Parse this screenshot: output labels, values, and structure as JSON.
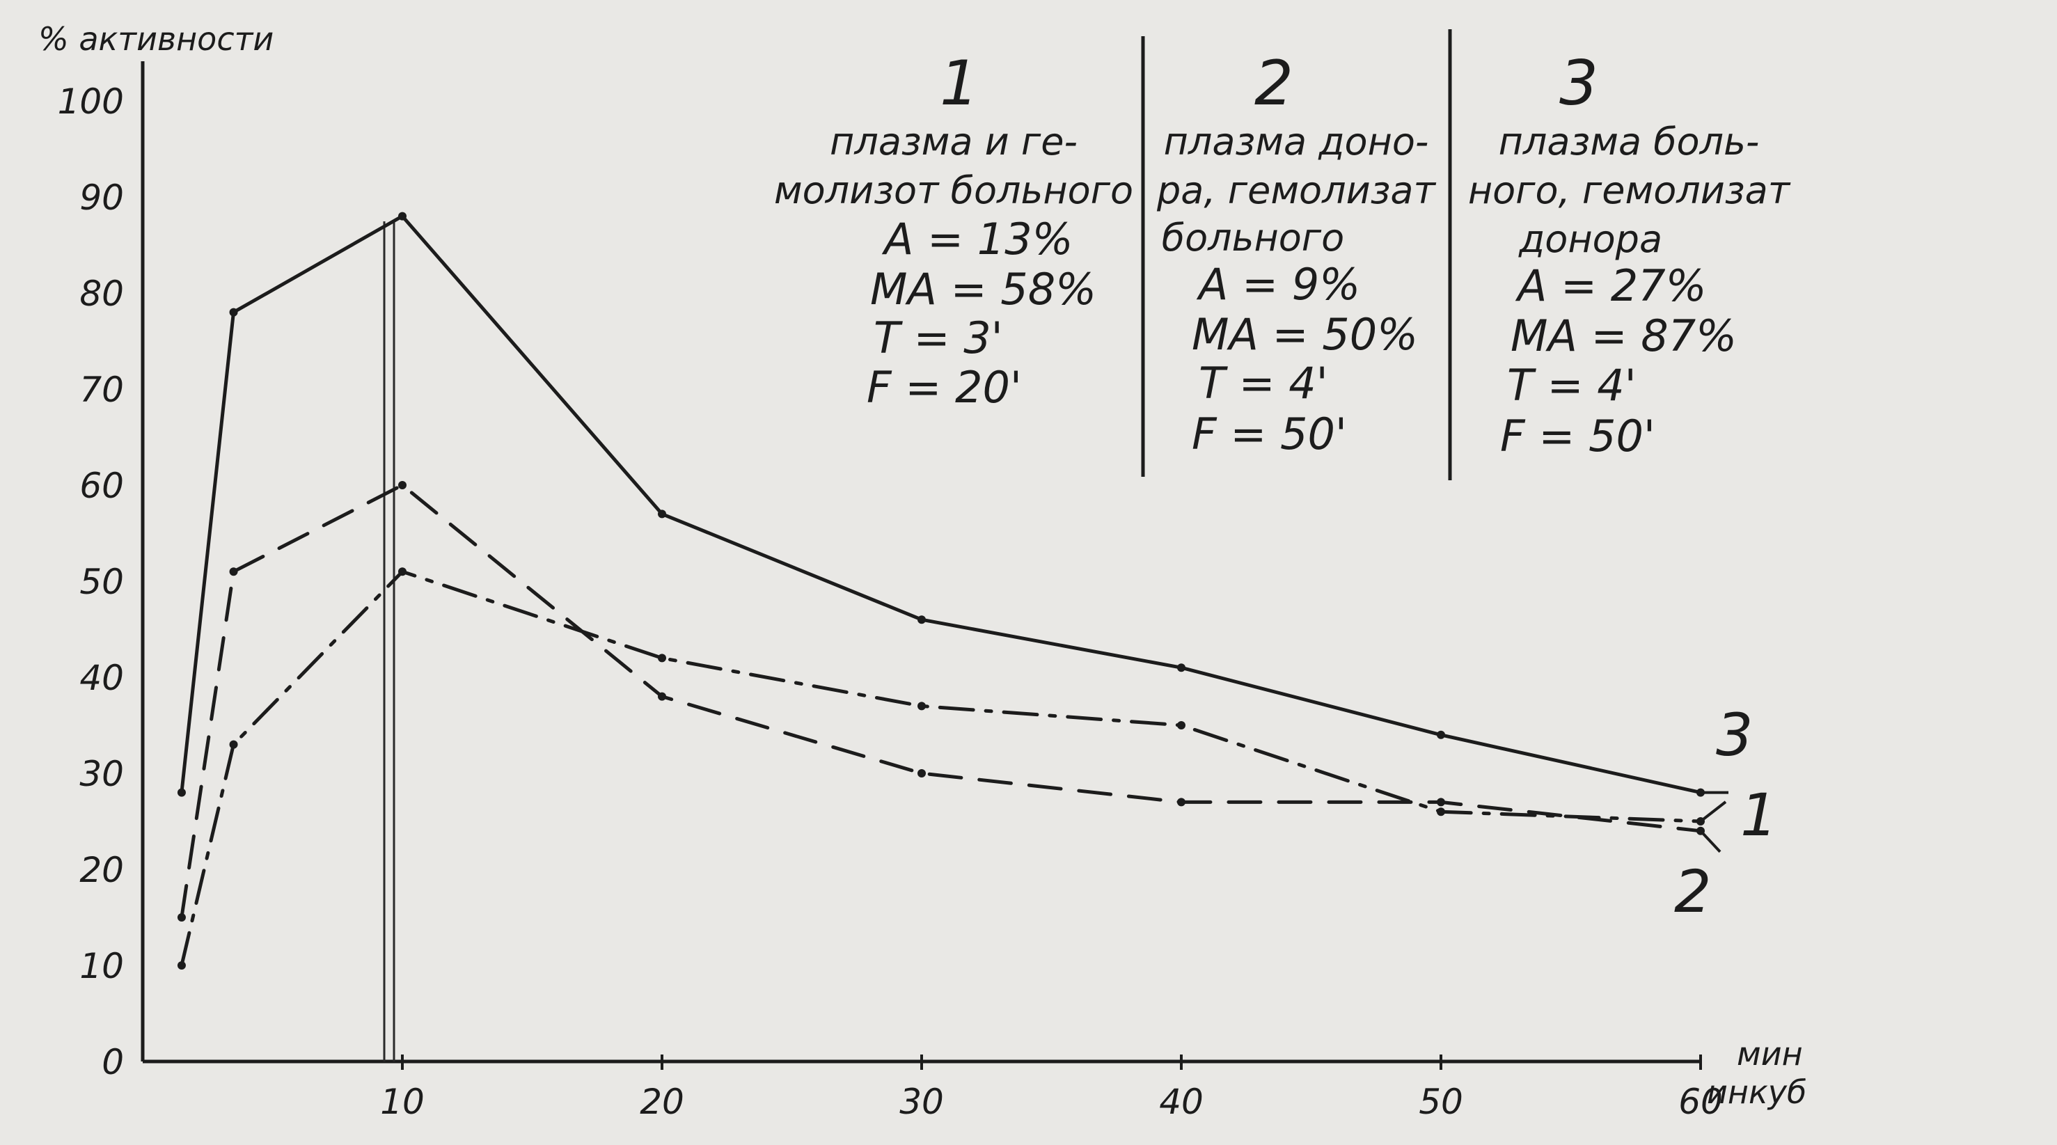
{
  "chart_data": {
    "type": "line",
    "ylabel": "% активности",
    "xlabel_lines": [
      "мин",
      "инкуб"
    ],
    "x_ticks": [
      "10",
      "20",
      "30",
      "40",
      "50",
      "60"
    ],
    "y_ticks": [
      "0",
      "10",
      "20",
      "30",
      "40",
      "50",
      "60",
      "70",
      "80",
      "90",
      "100"
    ],
    "xlim": [
      0,
      60
    ],
    "ylim": [
      0,
      100
    ],
    "grid": false,
    "series": [
      {
        "name": "1",
        "style": "solid",
        "x": [
          1.5,
          3.5,
          10,
          20,
          30,
          40,
          50,
          60
        ],
        "y": [
          28,
          78,
          88,
          57,
          46,
          41,
          34,
          28
        ]
      },
      {
        "name": "2",
        "style": "dashed",
        "x": [
          1.5,
          3.5,
          10,
          20,
          30,
          40,
          50,
          60
        ],
        "y": [
          15,
          51,
          60,
          38,
          30,
          27,
          27,
          24
        ]
      },
      {
        "name": "3",
        "style": "dash-dot",
        "x": [
          1.5,
          3.5,
          10,
          20,
          30,
          40,
          50,
          60
        ],
        "y": [
          10,
          33,
          51,
          42,
          37,
          35,
          26,
          25
        ]
      }
    ],
    "end_labels": [
      {
        "series": "3",
        "text": "3"
      },
      {
        "series": "1",
        "text": "1"
      },
      {
        "series": "2",
        "text": "2"
      }
    ],
    "legend": [
      {
        "number": "1",
        "lines": [
          "плазма и ге-",
          "молизот больного"
        ],
        "params": [
          "A = 13%",
          "MA = 58%",
          "T = 3'",
          "F = 20'"
        ]
      },
      {
        "number": "2",
        "lines": [
          "плазма доно-",
          "ра, гемолизат",
          "больного"
        ],
        "params": [
          "A = 9%",
          "MA = 50%",
          "T = 4'",
          "F = 50'"
        ]
      },
      {
        "number": "3",
        "lines": [
          "плазма боль-",
          "ного, гемолизат",
          "донора"
        ],
        "params": [
          "A = 27%",
          "MA = 87%",
          "T = 4'",
          "F = 50'"
        ]
      }
    ]
  },
  "colors": {
    "background": "#e9e8e5",
    "ink": "#1c1c1c"
  }
}
